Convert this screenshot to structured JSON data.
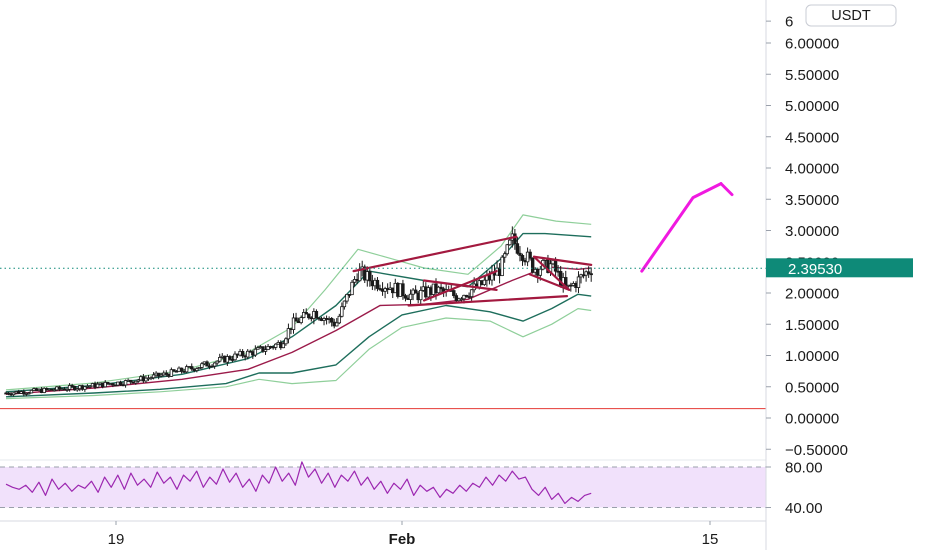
{
  "currency_badge": "USDT",
  "price_scale_ticks": [
    "6",
    "6.00000",
    "5.50000",
    "5.00000",
    "4.50000",
    "4.00000",
    "3.50000",
    "3.00000",
    "2.50000",
    "2.00000",
    "1.50000",
    "1.00000",
    "0.50000",
    "0.00000",
    "−0.50000"
  ],
  "last_price_label": "2.39530",
  "rsi_ticks": [
    "80.00",
    "40.00"
  ],
  "time_ticks": [
    "19",
    "Feb",
    "15"
  ],
  "colors": {
    "candle": "#1a1a1a",
    "outer_band": "#8fcf9a",
    "inner_band": "#1e6e5c",
    "moving_average": "#9b1b4a",
    "trendline": "#a3193f",
    "horizontal_line": "#e53935",
    "projection_arrow": "#f019e0",
    "rsi_line": "#9c27b0",
    "rsi_fill": "#f1e1fb",
    "last_price_badge": "#0e8a78"
  },
  "chart_data": {
    "type": "candlestick",
    "title": "",
    "xlabel": "",
    "ylabel": "",
    "quote_currency": "USDT",
    "ylim": [
      -0.6,
      6.4
    ],
    "x_ticks": [
      {
        "label": "19",
        "day": 19
      },
      {
        "label": "Feb",
        "day": 32
      },
      {
        "label": "15",
        "day": 46
      }
    ],
    "xlim_days": [
      14.0,
      48.8
    ],
    "last_price": 2.3953,
    "horizontal_levels": [
      0.15
    ],
    "price_path": [
      {
        "day": 14.0,
        "price": 0.4
      },
      {
        "day": 16.0,
        "price": 0.45
      },
      {
        "day": 18.0,
        "price": 0.52
      },
      {
        "day": 19.5,
        "price": 0.58
      },
      {
        "day": 21.0,
        "price": 0.68
      },
      {
        "day": 22.5,
        "price": 0.8
      },
      {
        "day": 24.0,
        "price": 0.95
      },
      {
        "day": 25.5,
        "price": 1.08
      },
      {
        "day": 26.5,
        "price": 1.2
      },
      {
        "day": 27.0,
        "price": 1.5
      },
      {
        "day": 28.0,
        "price": 1.7
      },
      {
        "day": 29.0,
        "price": 1.5
      },
      {
        "day": 30.0,
        "price": 2.35
      },
      {
        "day": 30.6,
        "price": 2.2
      },
      {
        "day": 31.5,
        "price": 2.1
      },
      {
        "day": 32.5,
        "price": 1.95
      },
      {
        "day": 33.5,
        "price": 2.05
      },
      {
        "day": 34.5,
        "price": 1.95
      },
      {
        "day": 35.5,
        "price": 2.1
      },
      {
        "day": 36.5,
        "price": 2.4
      },
      {
        "day": 37.0,
        "price": 2.85
      },
      {
        "day": 37.5,
        "price": 2.65
      },
      {
        "day": 38.0,
        "price": 2.4
      },
      {
        "day": 38.8,
        "price": 2.45
      },
      {
        "day": 39.5,
        "price": 2.05
      },
      {
        "day": 40.0,
        "price": 2.2
      },
      {
        "day": 40.6,
        "price": 2.4
      }
    ],
    "moving_average": [
      {
        "day": 14.0,
        "price": 0.38
      },
      {
        "day": 18.0,
        "price": 0.48
      },
      {
        "day": 22.0,
        "price": 0.62
      },
      {
        "day": 25.0,
        "price": 0.78
      },
      {
        "day": 27.0,
        "price": 1.05
      },
      {
        "day": 29.0,
        "price": 1.4
      },
      {
        "day": 31.0,
        "price": 1.8
      },
      {
        "day": 33.0,
        "price": 1.82
      },
      {
        "day": 35.0,
        "price": 1.9
      },
      {
        "day": 37.0,
        "price": 2.2
      },
      {
        "day": 38.6,
        "price": 2.42
      },
      {
        "day": 40.0,
        "price": 2.38
      },
      {
        "day": 40.6,
        "price": 2.4
      }
    ],
    "inner_band_upper": [
      {
        "day": 14.0,
        "price": 0.42
      },
      {
        "day": 18.0,
        "price": 0.52
      },
      {
        "day": 22.0,
        "price": 0.7
      },
      {
        "day": 25.0,
        "price": 0.95
      },
      {
        "day": 27.0,
        "price": 1.3
      },
      {
        "day": 29.0,
        "price": 1.8
      },
      {
        "day": 30.5,
        "price": 2.35
      },
      {
        "day": 33.0,
        "price": 2.2
      },
      {
        "day": 35.0,
        "price": 2.1
      },
      {
        "day": 36.5,
        "price": 2.55
      },
      {
        "day": 37.5,
        "price": 2.95
      },
      {
        "day": 38.5,
        "price": 2.95
      },
      {
        "day": 40.6,
        "price": 2.9
      }
    ],
    "inner_band_lower": [
      {
        "day": 14.0,
        "price": 0.34
      },
      {
        "day": 18.0,
        "price": 0.4
      },
      {
        "day": 21.0,
        "price": 0.46
      },
      {
        "day": 24.0,
        "price": 0.55
      },
      {
        "day": 25.5,
        "price": 0.72
      },
      {
        "day": 27.0,
        "price": 0.72
      },
      {
        "day": 29.0,
        "price": 0.85
      },
      {
        "day": 30.5,
        "price": 1.3
      },
      {
        "day": 32.0,
        "price": 1.65
      },
      {
        "day": 34.0,
        "price": 1.8
      },
      {
        "day": 36.0,
        "price": 1.7
      },
      {
        "day": 37.5,
        "price": 1.55
      },
      {
        "day": 38.8,
        "price": 1.75
      },
      {
        "day": 40.0,
        "price": 1.98
      },
      {
        "day": 40.6,
        "price": 1.95
      }
    ],
    "outer_band_upper": [
      {
        "day": 14.0,
        "price": 0.45
      },
      {
        "day": 18.0,
        "price": 0.56
      },
      {
        "day": 22.0,
        "price": 0.76
      },
      {
        "day": 25.0,
        "price": 1.05
      },
      {
        "day": 27.0,
        "price": 1.45
      },
      {
        "day": 28.5,
        "price": 2.05
      },
      {
        "day": 30.0,
        "price": 2.7
      },
      {
        "day": 31.5,
        "price": 2.55
      },
      {
        "day": 33.0,
        "price": 2.4
      },
      {
        "day": 35.0,
        "price": 2.3
      },
      {
        "day": 36.5,
        "price": 2.75
      },
      {
        "day": 37.5,
        "price": 3.25
      },
      {
        "day": 39.0,
        "price": 3.15
      },
      {
        "day": 40.6,
        "price": 3.1
      }
    ],
    "outer_band_lower": [
      {
        "day": 14.0,
        "price": 0.31
      },
      {
        "day": 18.0,
        "price": 0.36
      },
      {
        "day": 21.0,
        "price": 0.42
      },
      {
        "day": 24.0,
        "price": 0.5
      },
      {
        "day": 25.5,
        "price": 0.62
      },
      {
        "day": 27.0,
        "price": 0.55
      },
      {
        "day": 29.0,
        "price": 0.6
      },
      {
        "day": 30.5,
        "price": 1.1
      },
      {
        "day": 32.0,
        "price": 1.45
      },
      {
        "day": 34.0,
        "price": 1.6
      },
      {
        "day": 36.0,
        "price": 1.55
      },
      {
        "day": 37.5,
        "price": 1.3
      },
      {
        "day": 38.8,
        "price": 1.5
      },
      {
        "day": 40.0,
        "price": 1.75
      },
      {
        "day": 40.6,
        "price": 1.72
      }
    ],
    "trendlines": [
      {
        "from": {
          "day": 29.8,
          "price": 2.35
        },
        "to": {
          "day": 37.2,
          "price": 2.9
        }
      },
      {
        "from": {
          "day": 32.3,
          "price": 1.8
        },
        "to": {
          "day": 39.5,
          "price": 1.95
        }
      },
      {
        "from": {
          "day": 33.0,
          "price": 1.88
        },
        "to": {
          "day": 36.3,
          "price": 2.35
        }
      },
      {
        "from": {
          "day": 33.0,
          "price": 2.2
        },
        "to": {
          "day": 36.3,
          "price": 2.05
        }
      },
      {
        "from": {
          "day": 38.0,
          "price": 2.58
        },
        "to": {
          "day": 40.6,
          "price": 2.45
        }
      },
      {
        "from": {
          "day": 38.0,
          "price": 2.58
        },
        "to": {
          "day": 39.6,
          "price": 2.05
        }
      },
      {
        "from": {
          "day": 37.8,
          "price": 2.3
        },
        "to": {
          "day": 39.6,
          "price": 2.05
        }
      }
    ],
    "projection_arrow": [
      {
        "day": 42.9,
        "price": 2.35
      },
      {
        "day": 46.5,
        "price": 3.75
      }
    ],
    "rsi": {
      "ylim": [
        20,
        100
      ],
      "band": [
        40,
        80
      ],
      "values": [
        63,
        60,
        58,
        62,
        55,
        65,
        52,
        68,
        58,
        64,
        56,
        62,
        59,
        66,
        55,
        70,
        60,
        72,
        58,
        74,
        62,
        68,
        60,
        75,
        64,
        70,
        58,
        72,
        66,
        76,
        60,
        70,
        63,
        78,
        65,
        74,
        60,
        68,
        56,
        72,
        64,
        80,
        66,
        74,
        62,
        85,
        70,
        78,
        64,
        74,
        60,
        72,
        66,
        76,
        62,
        70,
        58,
        66,
        54,
        64,
        58,
        68,
        52,
        62,
        56,
        60,
        50,
        58,
        54,
        62,
        56,
        64,
        60,
        70,
        62,
        72,
        66,
        76,
        68,
        70,
        58,
        52,
        60,
        48,
        54,
        44,
        50,
        46,
        52,
        54
      ]
    }
  }
}
